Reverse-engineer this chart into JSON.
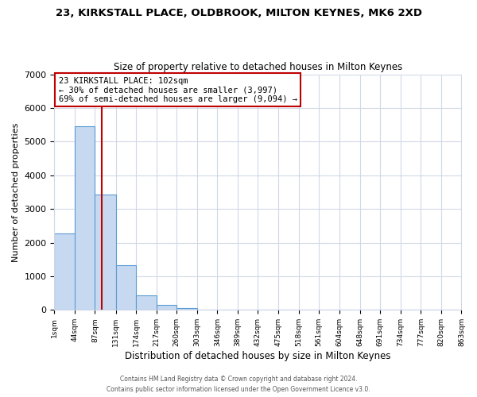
{
  "title": "23, KIRKSTALL PLACE, OLDBROOK, MILTON KEYNES, MK6 2XD",
  "subtitle": "Size of property relative to detached houses in Milton Keynes",
  "xlabel": "Distribution of detached houses by size in Milton Keynes",
  "ylabel": "Number of detached properties",
  "bar_values": [
    2270,
    5450,
    3420,
    1340,
    440,
    160,
    60,
    0,
    0,
    0,
    0,
    0,
    0,
    0,
    0,
    0,
    0,
    0,
    0,
    0
  ],
  "bin_edges": [
    1,
    44,
    87,
    131,
    174,
    217,
    260,
    303,
    346,
    389,
    432,
    475,
    518,
    561,
    604,
    648,
    691,
    734,
    777,
    820,
    863
  ],
  "tick_labels": [
    "1sqm",
    "44sqm",
    "87sqm",
    "131sqm",
    "174sqm",
    "217sqm",
    "260sqm",
    "303sqm",
    "346sqm",
    "389sqm",
    "432sqm",
    "475sqm",
    "518sqm",
    "561sqm",
    "604sqm",
    "648sqm",
    "691sqm",
    "734sqm",
    "777sqm",
    "820sqm",
    "863sqm"
  ],
  "bar_color": "#c6d9f0",
  "bar_edge_color": "#5b9bd5",
  "vline_x": 102,
  "vline_color": "#c00000",
  "ylim": [
    0,
    7000
  ],
  "yticks": [
    0,
    1000,
    2000,
    3000,
    4000,
    5000,
    6000,
    7000
  ],
  "annotation_title": "23 KIRKSTALL PLACE: 102sqm",
  "annotation_line1": "← 30% of detached houses are smaller (3,997)",
  "annotation_line2": "69% of semi-detached houses are larger (9,094) →",
  "annotation_box_color": "#ffffff",
  "annotation_box_edge": "#c00000",
  "footer1": "Contains HM Land Registry data © Crown copyright and database right 2024.",
  "footer2": "Contains public sector information licensed under the Open Government Licence v3.0.",
  "bg_color": "#ffffff",
  "grid_color": "#d0d8e8"
}
